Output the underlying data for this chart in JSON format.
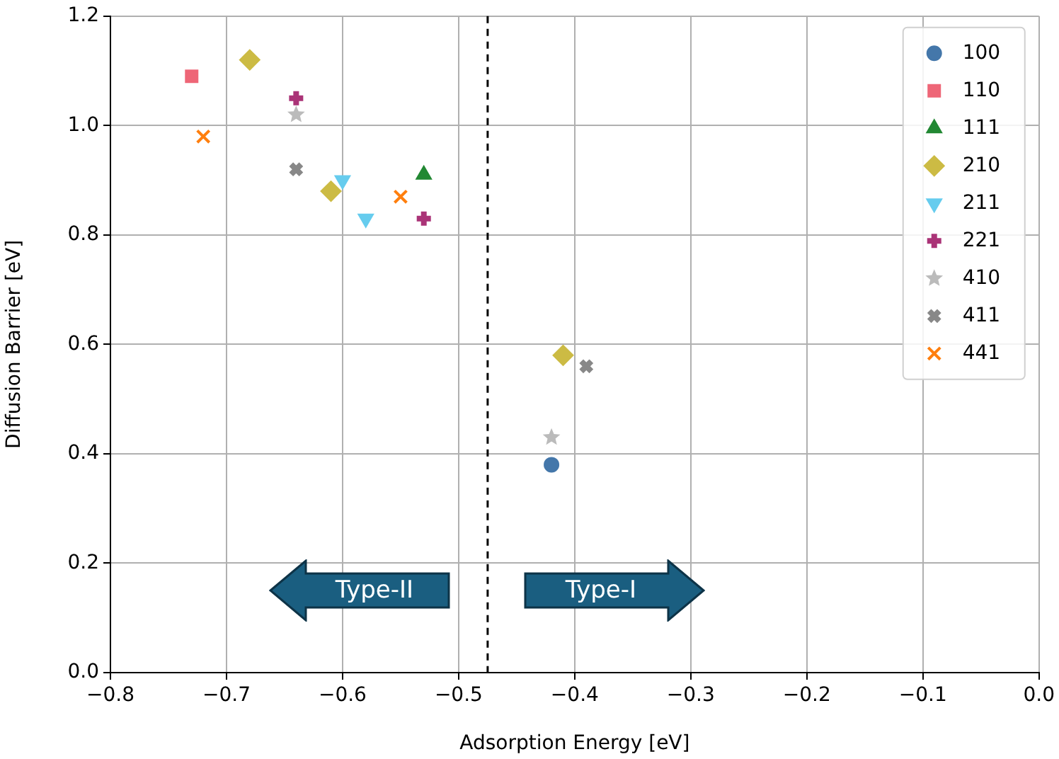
{
  "chart_data": {
    "type": "scatter",
    "xlabel": "Adsorption Energy [eV]",
    "ylabel": "Diffusion Barrier [eV]",
    "xlim": [
      -0.8,
      0.0
    ],
    "xticks": [
      {
        "value": -0.8,
        "label": "−0.8"
      },
      {
        "value": -0.7,
        "label": "−0.7"
      },
      {
        "value": -0.6,
        "label": "−0.6"
      },
      {
        "value": -0.5,
        "label": "−0.5"
      },
      {
        "value": -0.4,
        "label": "−0.4"
      },
      {
        "value": -0.3,
        "label": "−0.3"
      },
      {
        "value": -0.2,
        "label": "−0.2"
      },
      {
        "value": -0.1,
        "label": "−0.1"
      },
      {
        "value": 0.0,
        "label": "0.0"
      }
    ],
    "ylim": [
      0,
      1.2
    ],
    "yticks": [
      {
        "value": 0,
        "label": "0.0"
      },
      {
        "value": 0.2,
        "label": "0.2"
      },
      {
        "value": 0.4,
        "label": "0.4"
      },
      {
        "value": 0.6,
        "label": "0.6"
      },
      {
        "value": 0.8,
        "label": "0.8"
      },
      {
        "value": 1.0,
        "label": "1.0"
      },
      {
        "value": 1.2,
        "label": "1.2"
      }
    ],
    "grid": true,
    "legend": "top right",
    "series": [
      {
        "name": "100",
        "color": "#4477aa",
        "marker": "circle",
        "x": [
          -0.42
        ],
        "values": [
          0.38
        ]
      },
      {
        "name": "110",
        "color": "#ee6677",
        "marker": "square",
        "x": [
          -0.73
        ],
        "values": [
          1.09
        ]
      },
      {
        "name": "111",
        "color": "#228833",
        "marker": "triangle",
        "x": [
          -0.53
        ],
        "values": [
          0.91
        ]
      },
      {
        "name": "210",
        "color": "#ccbb44",
        "marker": "diamond",
        "x": [
          -0.68,
          -0.61,
          -0.41
        ],
        "values": [
          1.12,
          0.88,
          0.58
        ]
      },
      {
        "name": "211",
        "color": "#66ccee",
        "marker": "triangle_down",
        "x": [
          -0.6,
          -0.58
        ],
        "values": [
          0.9,
          0.83
        ]
      },
      {
        "name": "221",
        "color": "#aa3377",
        "marker": "plus",
        "x": [
          -0.64,
          -0.53
        ],
        "values": [
          1.05,
          0.83
        ]
      },
      {
        "name": "410",
        "color": "#bbbbbb",
        "marker": "star",
        "x": [
          -0.64,
          -0.42
        ],
        "values": [
          1.02,
          0.43
        ]
      },
      {
        "name": "411",
        "color": "#888888",
        "marker": "cross",
        "x": [
          -0.64,
          -0.39
        ],
        "values": [
          0.92,
          0.56
        ]
      },
      {
        "name": "441",
        "color": "#ff7f0e",
        "marker": "x",
        "x": [
          -0.72,
          -0.55
        ],
        "values": [
          0.98,
          0.87
        ]
      }
    ],
    "ref_lines": [
      {
        "axis": "x",
        "value": -0.475,
        "color": "#000000",
        "line_style": "dashed"
      }
    ],
    "annotations": [
      "Type-II",
      "Type-I"
    ]
  }
}
